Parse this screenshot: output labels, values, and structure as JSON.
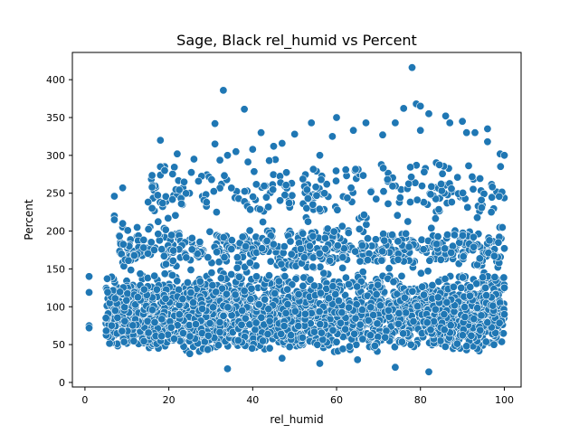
{
  "chart_data": {
    "type": "scatter",
    "title": "Sage, Black rel_humid vs Percent",
    "xlabel": "rel_humid",
    "ylabel": "Percent",
    "xlim": [
      -3,
      104
    ],
    "ylim": [
      -6,
      436
    ],
    "xticks": [
      0,
      20,
      40,
      60,
      80,
      100
    ],
    "yticks": [
      0,
      50,
      100,
      150,
      200,
      250,
      300,
      350,
      400
    ],
    "marker_color": "#1f77b4",
    "marker_edge_color": "#ffffff",
    "grid": false,
    "legend": false,
    "notable_points": [
      {
        "x": 1,
        "y": 140
      },
      {
        "x": 1,
        "y": 119
      },
      {
        "x": 1,
        "y": 75
      },
      {
        "x": 1,
        "y": 72
      },
      {
        "x": 5,
        "y": 85
      },
      {
        "x": 7,
        "y": 246
      },
      {
        "x": 7,
        "y": 220
      },
      {
        "x": 7,
        "y": 215
      },
      {
        "x": 9,
        "y": 257
      },
      {
        "x": 9,
        "y": 210
      },
      {
        "x": 14,
        "y": 178
      },
      {
        "x": 16,
        "y": 258
      },
      {
        "x": 16,
        "y": 230
      },
      {
        "x": 18,
        "y": 320
      },
      {
        "x": 18,
        "y": 285
      },
      {
        "x": 18,
        "y": 274
      },
      {
        "x": 19,
        "y": 280
      },
      {
        "x": 22,
        "y": 302
      },
      {
        "x": 23,
        "y": 236
      },
      {
        "x": 26,
        "y": 295
      },
      {
        "x": 29,
        "y": 238
      },
      {
        "x": 31,
        "y": 342
      },
      {
        "x": 31,
        "y": 315
      },
      {
        "x": 33,
        "y": 386
      },
      {
        "x": 34,
        "y": 300
      },
      {
        "x": 36,
        "y": 305
      },
      {
        "x": 38,
        "y": 361
      },
      {
        "x": 40,
        "y": 308
      },
      {
        "x": 42,
        "y": 330
      },
      {
        "x": 45,
        "y": 312
      },
      {
        "x": 47,
        "y": 316
      },
      {
        "x": 50,
        "y": 328
      },
      {
        "x": 54,
        "y": 343
      },
      {
        "x": 56,
        "y": 300
      },
      {
        "x": 59,
        "y": 325
      },
      {
        "x": 60,
        "y": 350
      },
      {
        "x": 64,
        "y": 333
      },
      {
        "x": 67,
        "y": 343
      },
      {
        "x": 71,
        "y": 327
      },
      {
        "x": 74,
        "y": 343
      },
      {
        "x": 76,
        "y": 362
      },
      {
        "x": 78,
        "y": 416
      },
      {
        "x": 79,
        "y": 368
      },
      {
        "x": 80,
        "y": 365
      },
      {
        "x": 80,
        "y": 333
      },
      {
        "x": 82,
        "y": 355
      },
      {
        "x": 86,
        "y": 352
      },
      {
        "x": 87,
        "y": 343
      },
      {
        "x": 90,
        "y": 345
      },
      {
        "x": 91,
        "y": 330
      },
      {
        "x": 93,
        "y": 330
      },
      {
        "x": 96,
        "y": 335
      },
      {
        "x": 96,
        "y": 318
      },
      {
        "x": 99,
        "y": 302
      },
      {
        "x": 100,
        "y": 300
      },
      {
        "x": 100,
        "y": 177
      },
      {
        "x": 100,
        "y": 125
      },
      {
        "x": 100,
        "y": 90
      },
      {
        "x": 34,
        "y": 18
      },
      {
        "x": 56,
        "y": 25
      },
      {
        "x": 74,
        "y": 20
      },
      {
        "x": 82,
        "y": 14
      },
      {
        "x": 47,
        "y": 32
      },
      {
        "x": 25,
        "y": 38
      },
      {
        "x": 65,
        "y": 30
      },
      {
        "x": 91,
        "y": 48
      }
    ],
    "clusters": [
      {
        "x_range": [
          5,
          100
        ],
        "y_range": [
          40,
          150
        ],
        "count": 2400
      },
      {
        "x_range": [
          8,
          100
        ],
        "y_range": [
          150,
          210
        ],
        "count": 520
      },
      {
        "x_range": [
          15,
          100
        ],
        "y_range": [
          210,
          300
        ],
        "count": 240
      }
    ]
  }
}
